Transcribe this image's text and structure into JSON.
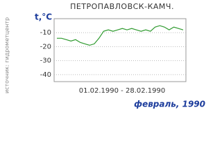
{
  "chart_data": {
    "type": "line",
    "title": "ПЕТРОПАВЛОВСК-КАМЧ.",
    "y_label": "t,°C",
    "x_label": "01.02.1990 - 28.02.1990",
    "source": "источник: гидрометцентр",
    "period": "февраль, 1990",
    "values": [
      -14,
      -14,
      -15,
      -16,
      -15,
      -17,
      -18,
      -19,
      -18,
      -14,
      -9,
      -8,
      -9,
      -8,
      -7,
      -8,
      -7,
      -8,
      -9,
      -8,
      -9,
      -6,
      -5,
      -6,
      -8,
      -6,
      -7,
      -8
    ],
    "color": "#2e9a2e",
    "ylim": [
      -45,
      0
    ],
    "yticks": [
      -40,
      -30,
      -20,
      -10
    ],
    "grid": true
  }
}
